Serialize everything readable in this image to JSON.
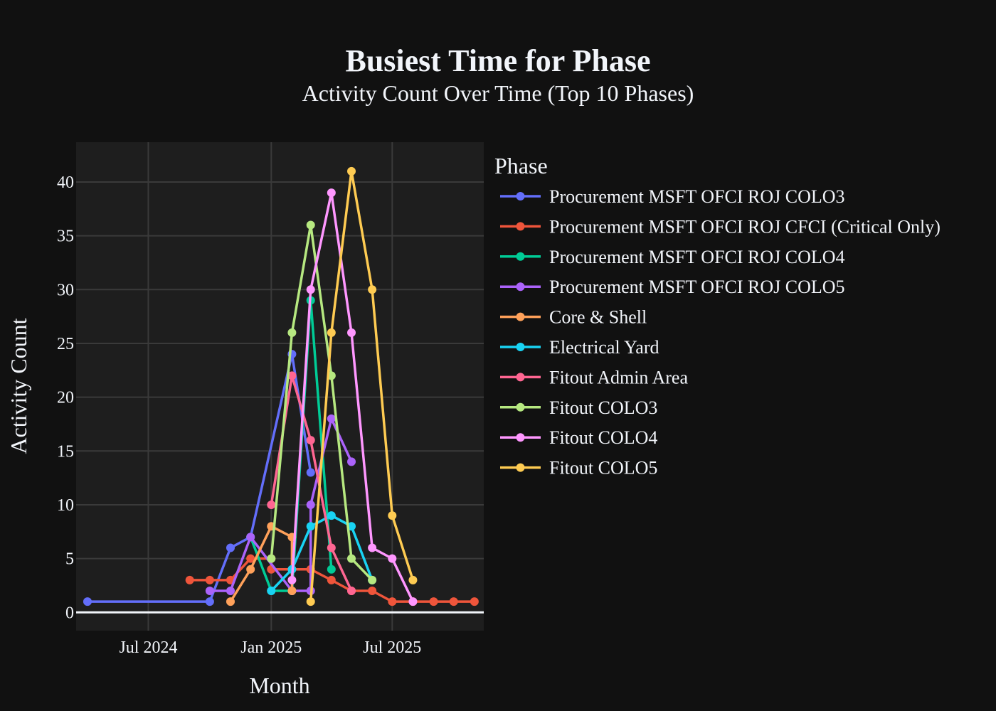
{
  "chart_data": {
    "type": "line",
    "title": "Busiest Time for Phase",
    "subtitle": "Activity Count Over Time (Top 10 Phases)",
    "xlabel": "Month",
    "ylabel": "Activity Count",
    "x_ticks": [
      {
        "label": "Jul 2024",
        "date": "2024-07-01"
      },
      {
        "label": "Jan 2025",
        "date": "2025-01-01"
      },
      {
        "label": "Jul 2025",
        "date": "2025-07-01"
      }
    ],
    "y_ticks": [
      0,
      5,
      10,
      15,
      20,
      25,
      30,
      35,
      40
    ],
    "xlim": [
      "2024-03-15",
      "2025-11-15"
    ],
    "ylim": [
      -1.7,
      43.7
    ],
    "grid": true,
    "legend_title": "Phase",
    "legend_position": "right",
    "series": [
      {
        "name": "Procurement MSFT OFCI ROJ COLO3",
        "color": "#636efa",
        "points": [
          [
            "2024-04-01",
            1
          ],
          [
            "2024-10-01",
            1
          ],
          [
            "2024-11-01",
            6
          ],
          [
            "2024-12-01",
            7
          ],
          [
            "2025-02-01",
            24
          ],
          [
            "2025-03-01",
            13
          ]
        ]
      },
      {
        "name": "Procurement MSFT OFCI ROJ CFCI (Critical Only)",
        "color": "#ef553b",
        "points": [
          [
            "2024-09-01",
            3
          ],
          [
            "2024-10-01",
            3
          ],
          [
            "2024-11-01",
            3
          ],
          [
            "2024-12-01",
            5
          ],
          [
            "2025-01-01",
            5
          ],
          [
            "2025-01-01",
            4
          ],
          [
            "2025-02-01",
            4
          ],
          [
            "2025-03-01",
            4
          ],
          [
            "2025-04-01",
            3
          ],
          [
            "2025-05-01",
            2
          ],
          [
            "2025-06-01",
            2
          ],
          [
            "2025-07-01",
            1
          ],
          [
            "2025-08-01",
            1
          ],
          [
            "2025-09-01",
            1
          ],
          [
            "2025-10-01",
            1
          ],
          [
            "2025-11-01",
            1
          ]
        ]
      },
      {
        "name": "Procurement MSFT OFCI ROJ COLO4",
        "color": "#00cc96",
        "points": [
          [
            "2024-12-01",
            7
          ],
          [
            "2025-01-01",
            2
          ],
          [
            "2025-02-01",
            2
          ],
          [
            "2025-03-01",
            29
          ],
          [
            "2025-04-01",
            4
          ]
        ]
      },
      {
        "name": "Procurement MSFT OFCI ROJ COLO5",
        "color": "#ab63fa",
        "points": [
          [
            "2024-10-01",
            2
          ],
          [
            "2024-11-01",
            2
          ],
          [
            "2024-12-01",
            7
          ],
          [
            "2025-02-01",
            2
          ],
          [
            "2025-03-01",
            2
          ],
          [
            "2025-03-01",
            10
          ],
          [
            "2025-04-01",
            18
          ],
          [
            "2025-05-01",
            14
          ]
        ]
      },
      {
        "name": "Core & Shell",
        "color": "#ffa15a",
        "points": [
          [
            "2024-11-01",
            1
          ],
          [
            "2024-12-01",
            4
          ],
          [
            "2025-01-01",
            8
          ],
          [
            "2025-02-01",
            7
          ],
          [
            "2025-02-01",
            2
          ]
        ]
      },
      {
        "name": "Electrical Yard",
        "color": "#19d3f3",
        "points": [
          [
            "2025-01-01",
            2
          ],
          [
            "2025-02-01",
            4
          ],
          [
            "2025-03-01",
            8
          ],
          [
            "2025-04-01",
            9
          ],
          [
            "2025-05-01",
            8
          ],
          [
            "2025-06-01",
            3
          ]
        ]
      },
      {
        "name": "Fitout Admin Area",
        "color": "#ff6692",
        "points": [
          [
            "2025-01-01",
            10
          ],
          [
            "2025-02-01",
            22
          ],
          [
            "2025-03-01",
            16
          ],
          [
            "2025-04-01",
            6
          ],
          [
            "2025-05-01",
            2
          ]
        ]
      },
      {
        "name": "Fitout COLO3",
        "color": "#b6e880",
        "points": [
          [
            "2025-01-01",
            5
          ],
          [
            "2025-02-01",
            26
          ],
          [
            "2025-03-01",
            36
          ],
          [
            "2025-04-01",
            22
          ],
          [
            "2025-05-01",
            5
          ],
          [
            "2025-06-01",
            3
          ]
        ]
      },
      {
        "name": "Fitout COLO4",
        "color": "#ff97ff",
        "points": [
          [
            "2025-02-01",
            3
          ],
          [
            "2025-03-01",
            30
          ],
          [
            "2025-04-01",
            39
          ],
          [
            "2025-05-01",
            26
          ],
          [
            "2025-06-01",
            6
          ],
          [
            "2025-07-01",
            5
          ],
          [
            "2025-08-01",
            1
          ]
        ]
      },
      {
        "name": "Fitout COLO5",
        "color": "#fecb52",
        "points": [
          [
            "2025-03-01",
            1
          ],
          [
            "2025-04-01",
            26
          ],
          [
            "2025-05-01",
            41
          ],
          [
            "2025-06-01",
            30
          ],
          [
            "2025-07-01",
            9
          ],
          [
            "2025-08-01",
            3
          ]
        ]
      }
    ]
  }
}
